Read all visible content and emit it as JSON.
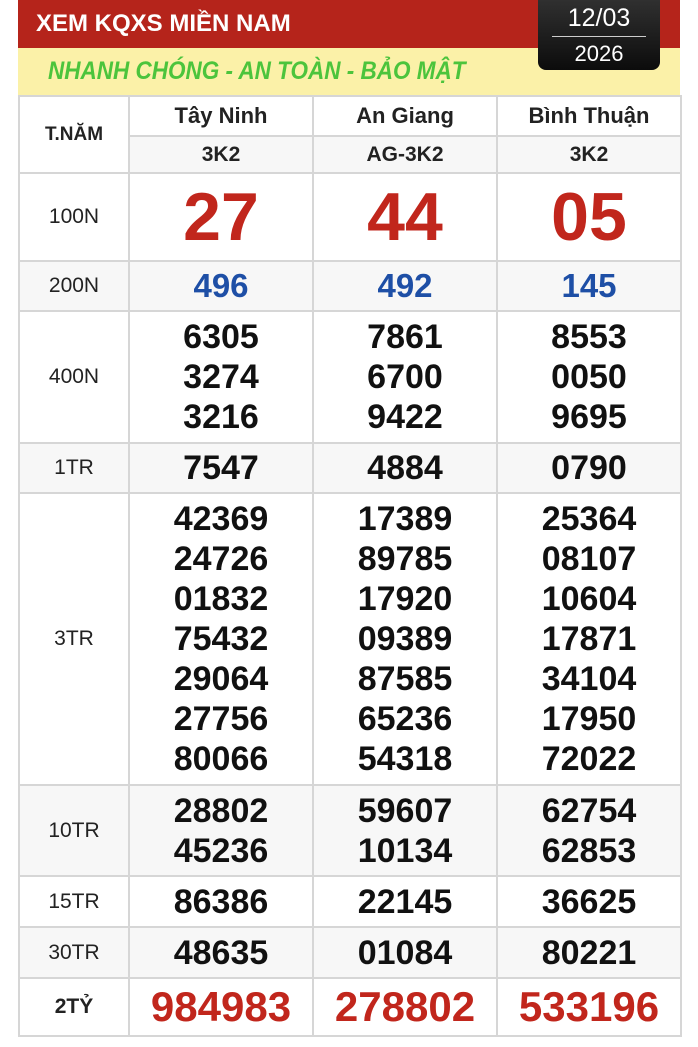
{
  "header": {
    "title": "XEM KQXS MIỀN NAM",
    "slogan": "NHANH CHÓNG - AN TOÀN - BẢO MẬT",
    "date_day": "12/03",
    "date_year": "2026"
  },
  "colors": {
    "header_red": "#b5241b",
    "slogan_green": "#4cc43c",
    "band_yellow": "#fbf1a8",
    "prize_red": "#c1261c",
    "prize_blue": "#1e4fa6"
  },
  "table": {
    "corner_label": "T.NĂM",
    "provinces": [
      {
        "name": "Tây Ninh",
        "code": "3K2"
      },
      {
        "name": "An Giang",
        "code": "AG-3K2"
      },
      {
        "name": "Bình Thuận",
        "code": "3K2"
      }
    ],
    "rows": [
      {
        "label": "100N",
        "values": [
          [
            "27"
          ],
          [
            "44"
          ],
          [
            "05"
          ]
        ]
      },
      {
        "label": "200N",
        "values": [
          [
            "496"
          ],
          [
            "492"
          ],
          [
            "145"
          ]
        ]
      },
      {
        "label": "400N",
        "values": [
          [
            "6305",
            "3274",
            "3216"
          ],
          [
            "7861",
            "6700",
            "9422"
          ],
          [
            "8553",
            "0050",
            "9695"
          ]
        ]
      },
      {
        "label": "1TR",
        "values": [
          [
            "7547"
          ],
          [
            "4884"
          ],
          [
            "0790"
          ]
        ]
      },
      {
        "label": "3TR",
        "values": [
          [
            "42369",
            "24726",
            "01832",
            "75432",
            "29064",
            "27756",
            "80066"
          ],
          [
            "17389",
            "89785",
            "17920",
            "09389",
            "87585",
            "65236",
            "54318"
          ],
          [
            "25364",
            "08107",
            "10604",
            "17871",
            "34104",
            "17950",
            "72022"
          ]
        ]
      },
      {
        "label": "10TR",
        "values": [
          [
            "28802",
            "45236"
          ],
          [
            "59607",
            "10134"
          ],
          [
            "62754",
            "62853"
          ]
        ]
      },
      {
        "label": "15TR",
        "values": [
          [
            "86386"
          ],
          [
            "22145"
          ],
          [
            "36625"
          ]
        ]
      },
      {
        "label": "30TR",
        "values": [
          [
            "48635"
          ],
          [
            "01084"
          ],
          [
            "80221"
          ]
        ]
      },
      {
        "label": "2TỶ",
        "values": [
          [
            "984983"
          ],
          [
            "278802"
          ],
          [
            "533196"
          ]
        ]
      }
    ]
  }
}
